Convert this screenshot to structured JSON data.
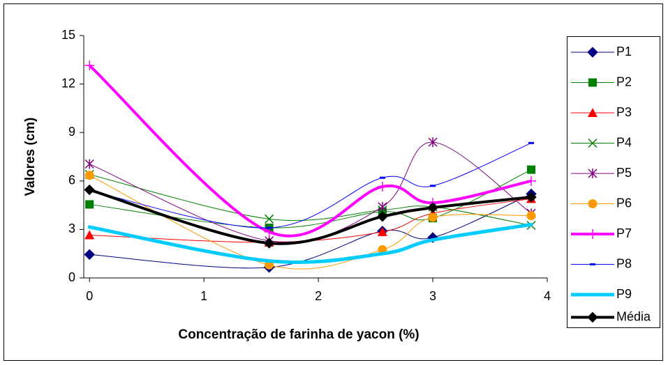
{
  "chart_data": {
    "type": "line",
    "xlabel": "Concentração de farinha de yacon (%)",
    "ylabel": "Valores (cm)",
    "x": [
      0,
      1.57,
      2.56,
      3,
      3.86
    ],
    "xlim": [
      -0.05,
      4
    ],
    "xticks": [
      0,
      1,
      2,
      3,
      4
    ],
    "ylim": [
      0,
      15
    ],
    "yticks": [
      0,
      3,
      6,
      9,
      12,
      15
    ],
    "smooth": true,
    "grid": false,
    "legend": "right",
    "series": [
      {
        "name": "P1",
        "color": "#000080",
        "marker": "diamond",
        "line_width": 1,
        "values": [
          1.45,
          0.65,
          2.9,
          2.5,
          5.2
        ]
      },
      {
        "name": "P2",
        "color": "#008000",
        "marker": "square",
        "line_width": 1,
        "values": [
          4.55,
          3.1,
          4.1,
          3.7,
          6.7
        ]
      },
      {
        "name": "P3",
        "color": "#ff0000",
        "marker": "triangle",
        "line_width": 1,
        "values": [
          2.65,
          2.2,
          2.85,
          4.0,
          4.9
        ]
      },
      {
        "name": "P4",
        "color": "#008000",
        "marker": "x",
        "line_width": 1,
        "values": [
          6.4,
          3.65,
          4.2,
          4.4,
          3.25
        ]
      },
      {
        "name": "P5",
        "color": "#800080",
        "marker": "star",
        "line_width": 1,
        "values": [
          7.05,
          2.3,
          4.4,
          8.4,
          4.0
        ]
      },
      {
        "name": "P6",
        "color": "#ff9900",
        "marker": "circle",
        "line_width": 1,
        "values": [
          6.35,
          0.8,
          1.75,
          3.75,
          3.85
        ]
      },
      {
        "name": "P7",
        "color": "#ff00ff",
        "marker": "plus",
        "line_width": 4,
        "values": [
          13.15,
          2.85,
          5.65,
          4.65,
          6.0
        ]
      },
      {
        "name": "P8",
        "color": "#0000ff",
        "marker": "dash",
        "line_width": 1,
        "values": [
          5.4,
          3.1,
          6.2,
          5.7,
          8.35
        ]
      },
      {
        "name": "P9",
        "color": "#00ccff",
        "marker": "none",
        "line_width": 5,
        "values": [
          3.15,
          1.05,
          1.5,
          2.35,
          3.3
        ]
      },
      {
        "name": "Média",
        "color": "#000000",
        "marker": "diamond",
        "line_width": 4,
        "values": [
          5.45,
          2.15,
          3.8,
          4.35,
          5.0
        ]
      }
    ]
  }
}
